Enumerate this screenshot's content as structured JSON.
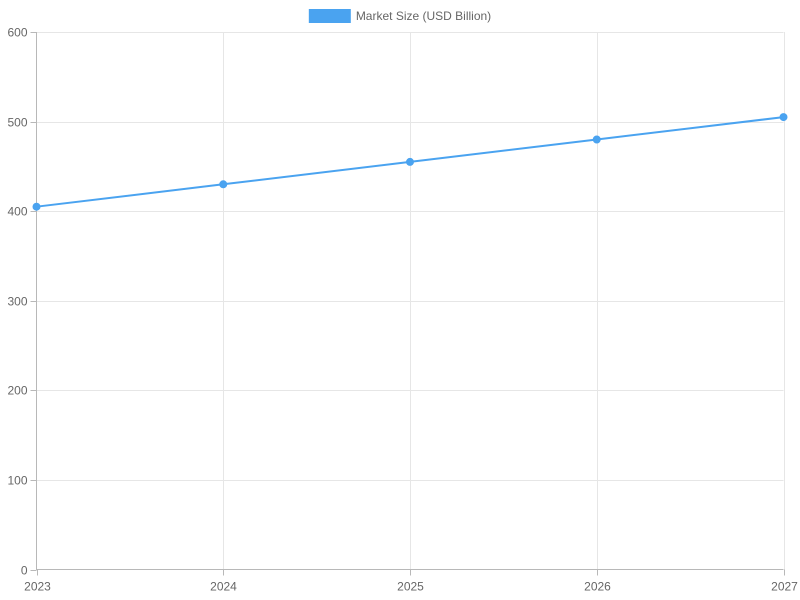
{
  "chart_data": {
    "type": "line",
    "title": "",
    "xlabel": "",
    "ylabel": "",
    "categories": [
      "2023",
      "2024",
      "2025",
      "2026",
      "2027"
    ],
    "series": [
      {
        "name": "Market Size (USD Billion)",
        "values": [
          405,
          430,
          455,
          480,
          505
        ],
        "color": "#4aa3f0"
      }
    ],
    "ylim": [
      0,
      600
    ],
    "yticks": [
      0,
      100,
      200,
      300,
      400,
      500,
      600
    ],
    "grid": true,
    "legend_position": "top-center"
  }
}
